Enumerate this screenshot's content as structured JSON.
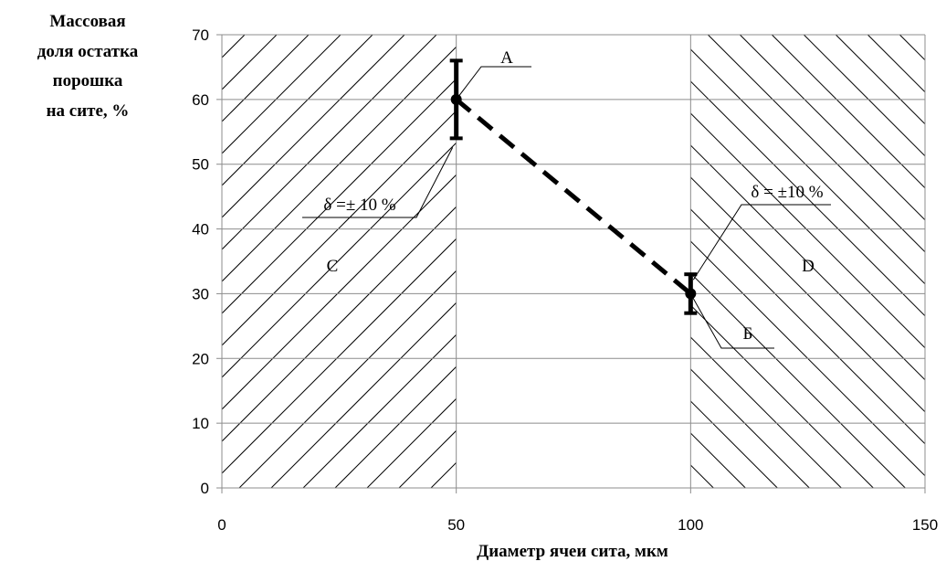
{
  "chart_data": {
    "type": "line",
    "x": [
      50,
      100
    ],
    "series": [
      {
        "values": [
          60,
          30
        ],
        "error": [
          6,
          3
        ],
        "style": "dashed"
      }
    ],
    "xlim": [
      0,
      150
    ],
    "ylim": [
      0,
      70
    ],
    "x_ticks": [
      "0",
      "50",
      "100",
      "150"
    ],
    "y_ticks": [
      "0",
      "10",
      "20",
      "30",
      "40",
      "50",
      "60",
      "70"
    ],
    "grid": true,
    "ylabel_lines": [
      "Массовая",
      "доля остатка",
      "порошка",
      "на сите, %"
    ],
    "xlabel": "Диаметр ячеи сита, мкм",
    "regions": [
      {
        "label": "C",
        "x_from": 0,
        "x_to": 50,
        "hatch": "forward"
      },
      {
        "label": "D",
        "x_from": 100,
        "x_to": 150,
        "hatch": "backward"
      }
    ],
    "annotations": {
      "point_a": "А",
      "point_b": "Б",
      "delta_left": "δ =± 10 %",
      "delta_right": "δ = ±10 %"
    }
  }
}
